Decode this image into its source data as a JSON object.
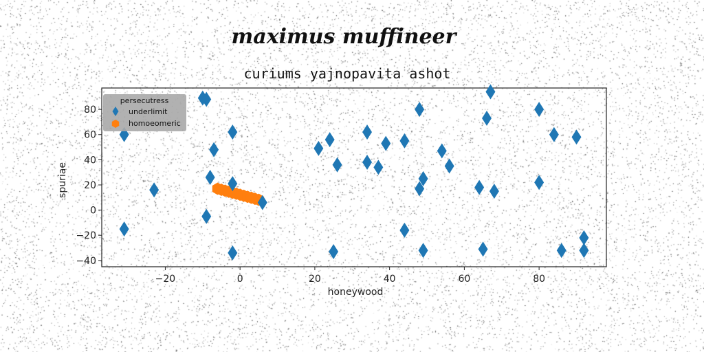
{
  "colors": {
    "underlimit": "#1f77b4",
    "homoeomeric": "#ff7f0e",
    "legend_box": "#a9a9a9"
  },
  "chart_data": {
    "type": "scatter",
    "suptitle": "maximus muffineer",
    "title": "curiums yajnopavita ashot",
    "xlabel": "honeywood",
    "ylabel": "spuriae",
    "xlim": [
      -37,
      98
    ],
    "ylim": [
      -45,
      97
    ],
    "xticks": [
      -20,
      0,
      20,
      40,
      60,
      80
    ],
    "yticks": [
      -40,
      -20,
      0,
      20,
      40,
      60,
      80
    ],
    "grid": false,
    "legend": {
      "title": "persecutress",
      "placement": "top-left"
    },
    "series": [
      {
        "name": "underlimit",
        "marker": "thin-diamond",
        "points": [
          [
            -31,
            60
          ],
          [
            -31,
            -15
          ],
          [
            -23,
            16
          ],
          [
            -10,
            89
          ],
          [
            -9,
            88
          ],
          [
            -8,
            26
          ],
          [
            -7,
            48
          ],
          [
            -9,
            -5
          ],
          [
            -2,
            62
          ],
          [
            -2,
            -34
          ],
          [
            -2,
            21
          ],
          [
            6,
            6
          ],
          [
            21,
            49
          ],
          [
            24,
            56
          ],
          [
            26,
            36
          ],
          [
            25,
            -33
          ],
          [
            34,
            38
          ],
          [
            34,
            62
          ],
          [
            37,
            34
          ],
          [
            39,
            53
          ],
          [
            44,
            55
          ],
          [
            44,
            -16
          ],
          [
            48,
            80
          ],
          [
            48,
            17
          ],
          [
            49,
            25
          ],
          [
            49,
            -32
          ],
          [
            54,
            47
          ],
          [
            56,
            35
          ],
          [
            64,
            18
          ],
          [
            65,
            -31
          ],
          [
            66,
            73
          ],
          [
            67,
            94
          ],
          [
            68,
            15
          ],
          [
            80,
            80
          ],
          [
            80,
            22
          ],
          [
            84,
            60
          ],
          [
            86,
            -32
          ],
          [
            90,
            58
          ],
          [
            92,
            -22
          ],
          [
            92,
            -32
          ]
        ]
      },
      {
        "name": "homoeomeric",
        "marker": "hexagon",
        "points": [
          [
            -6,
            17
          ],
          [
            -5,
            16.2
          ],
          [
            -4,
            15.4
          ],
          [
            -3,
            14.6
          ],
          [
            -2,
            13.8
          ],
          [
            -1,
            13
          ],
          [
            0,
            12.2
          ],
          [
            1,
            11.4
          ],
          [
            2,
            10.6
          ],
          [
            3,
            9.8
          ],
          [
            4,
            9
          ],
          [
            5,
            8.2
          ]
        ]
      }
    ]
  }
}
